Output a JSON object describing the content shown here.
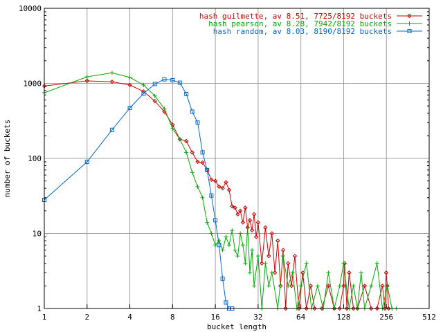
{
  "chart_data": {
    "type": "line",
    "xlabel": "bucket length",
    "ylabel": "number of buckets",
    "xscale": "log2",
    "yscale": "log10",
    "xlim": [
      1,
      512
    ],
    "ylim": [
      1,
      10000
    ],
    "x_ticks": [
      1,
      2,
      4,
      8,
      16,
      32,
      64,
      128,
      256,
      512
    ],
    "x_tick_labels": [
      "1",
      "2",
      "4",
      "8",
      "16",
      "32",
      "64",
      "128",
      "256",
      "512"
    ],
    "y_ticks": [
      1,
      10,
      100,
      1000,
      10000
    ],
    "y_tick_labels": [
      "1",
      "10",
      "100",
      "1000",
      "10000"
    ],
    "grid": true,
    "legend_position": "top-right",
    "series": [
      {
        "name": "hash guilmette, av 8.51, 7725/8192 buckets",
        "color": "#cc0000",
        "marker": "diamond",
        "x": [
          1,
          2,
          3,
          4,
          5,
          6,
          7,
          8,
          9,
          10,
          11,
          12,
          13,
          14,
          15,
          16,
          17,
          18,
          19,
          20,
          21,
          22,
          23,
          24,
          25,
          26,
          27,
          28,
          29,
          30,
          31,
          32,
          34,
          36,
          38,
          40,
          42,
          44,
          46,
          48,
          50,
          52,
          55,
          58,
          62,
          66,
          70,
          75,
          80,
          90,
          100,
          110,
          120,
          128,
          130,
          135,
          140,
          150,
          160,
          180,
          200,
          220,
          240,
          250,
          255,
          260,
          265
        ],
        "y": [
          920,
          1080,
          1050,
          950,
          780,
          580,
          420,
          280,
          180,
          170,
          120,
          90,
          88,
          70,
          52,
          50,
          42,
          40,
          48,
          38,
          23,
          22,
          18,
          20,
          14,
          22,
          12,
          15,
          11,
          18,
          9,
          14,
          4,
          12,
          5,
          10,
          3,
          8,
          2,
          6,
          1,
          4,
          2,
          5,
          1,
          3,
          1,
          2,
          1,
          1,
          2,
          1,
          1,
          2,
          4,
          1,
          3,
          1,
          1,
          2,
          1,
          1,
          2,
          1,
          3,
          2,
          1
        ]
      },
      {
        "name": "hash pearson, av 8.28, 7942/8192 buckets",
        "color": "#00aa00",
        "marker": "plus",
        "x": [
          1,
          2,
          3,
          4,
          5,
          6,
          7,
          8,
          9,
          10,
          11,
          12,
          13,
          14,
          15,
          16,
          17,
          18,
          19,
          20,
          21,
          22,
          23,
          24,
          25,
          26,
          27,
          28,
          29,
          30,
          32,
          34,
          36,
          38,
          40,
          44,
          48,
          52,
          56,
          60,
          64,
          70,
          76,
          84,
          92,
          100,
          110,
          120,
          128,
          140,
          150,
          160,
          170,
          180,
          200,
          220,
          240,
          260,
          280,
          300
        ],
        "y": [
          750,
          1220,
          1380,
          1200,
          950,
          680,
          460,
          250,
          180,
          120,
          65,
          42,
          30,
          14,
          10,
          7,
          8,
          6,
          9,
          7,
          11,
          6,
          5,
          10,
          7,
          4,
          12,
          3,
          6,
          2,
          5,
          1,
          4,
          2,
          3,
          1,
          5,
          2,
          3,
          1,
          2,
          4,
          1,
          2,
          1,
          3,
          1,
          2,
          4,
          1,
          2,
          1,
          3,
          1,
          2,
          4,
          1,
          2,
          1,
          1
        ]
      },
      {
        "name": "hash random, av 8.03, 8190/8192 buckets",
        "color": "#0066cc",
        "marker": "square",
        "x": [
          1,
          2,
          3,
          4,
          5,
          6,
          7,
          8,
          9,
          10,
          11,
          12,
          13,
          14,
          15,
          16,
          17,
          18,
          19,
          20,
          21
        ],
        "y": [
          28,
          90,
          240,
          470,
          730,
          980,
          1130,
          1100,
          1020,
          720,
          420,
          300,
          120,
          70,
          32,
          15,
          7,
          2.5,
          1.2,
          1,
          1
        ]
      }
    ]
  }
}
